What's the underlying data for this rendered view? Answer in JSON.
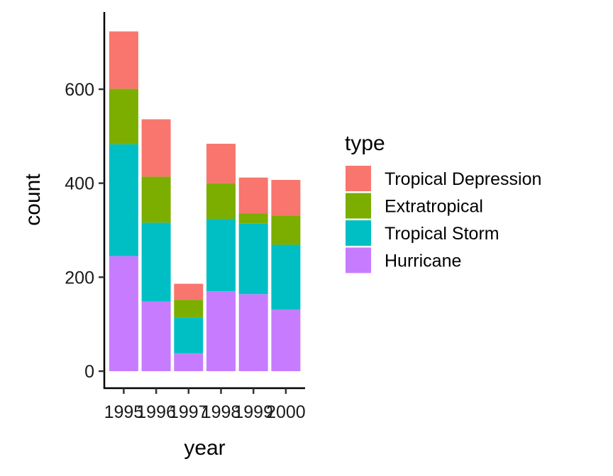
{
  "chart_data": {
    "type": "bar",
    "stacked": true,
    "categories": [
      "1995",
      "1996",
      "1997",
      "1998",
      "1999",
      "2000"
    ],
    "series": [
      {
        "name": "Tropical Depression",
        "color": "#F8766D",
        "values": [
          122,
          122,
          34,
          84,
          76,
          76
        ]
      },
      {
        "name": "Extratropical",
        "color": "#7CAE00",
        "values": [
          118,
          98,
          38,
          76,
          22,
          62
        ]
      },
      {
        "name": "Tropical Storm",
        "color": "#00BFC4",
        "values": [
          238,
          168,
          76,
          154,
          150,
          138
        ]
      },
      {
        "name": "Hurricane",
        "color": "#C77CFF",
        "values": [
          245,
          148,
          38,
          170,
          164,
          131
        ]
      }
    ],
    "xlabel": "year",
    "ylabel": "count",
    "ylim": [
      0,
      723
    ],
    "yticks": [
      0,
      200,
      400,
      600
    ],
    "legend_title": "type",
    "legend_position": "right",
    "grid": false
  }
}
